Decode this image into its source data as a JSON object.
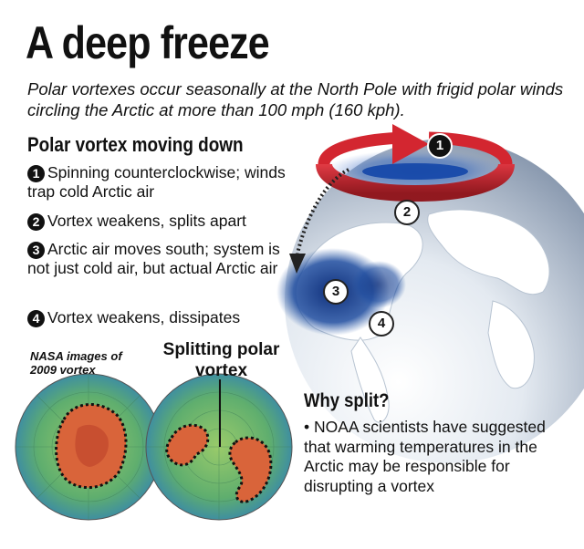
{
  "title": "A deep freeze",
  "subtitle": "Polar vortexes occur seasonally at the North Pole with frigid polar winds circling the Arctic at more than 100 mph (160 kph).",
  "section_heading": "Polar vortex moving down",
  "steps": [
    {
      "num": "1",
      "text": "Spinning counterclockwise; winds trap cold Arctic air"
    },
    {
      "num": "2",
      "text": "Vortex weakens, splits apart"
    },
    {
      "num": "3",
      "text": "Arctic air moves south; system is not just cold air, but actual Arctic air"
    },
    {
      "num": "4",
      "text": "Vortex weakens, dissipates"
    }
  ],
  "globe_markers": [
    "1",
    "2",
    "3",
    "4"
  ],
  "nasa_label": "NASA images of 2009 vortex",
  "split_label": "Splitting polar vortex",
  "why_heading": "Why split?",
  "why_text": "• NOAA scientists have suggested that warming temperatures in the Arctic may be responsible for disrupting a vortex",
  "colors": {
    "ring_red": "#c8202a",
    "cold_blue": "#123d8c",
    "globe_light": "#eef2f6",
    "globe_dark": "#8a9bb0",
    "map_green": "#7fbf5a",
    "vortex_orange": "#d9643a"
  }
}
